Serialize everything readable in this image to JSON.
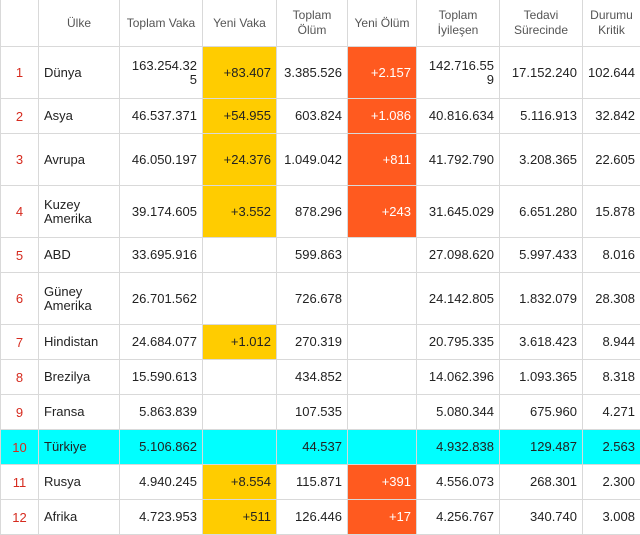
{
  "headers": {
    "country": "Ülke",
    "total_cases": "Toplam Vaka",
    "new_cases": "Yeni Vaka",
    "total_deaths": "Toplam Ölüm",
    "new_deaths": "Yeni Ölüm",
    "total_recovered": "Toplam İyileşen",
    "active": "Tedavi Sürecinde",
    "critical": "Durumu Kritik"
  },
  "colors": {
    "new_cases_bg": "#ffcc00",
    "new_deaths_bg": "#ff5a1f",
    "highlight_row_bg": "#00ffff",
    "rank_color": "#d62b1f"
  },
  "highlighted_row": "10",
  "rows": [
    {
      "rank": "1",
      "country": "Dünya",
      "total_cases": "163.254.325",
      "new_cases": "+83.407",
      "total_deaths": "3.385.526",
      "new_deaths": "+2.157",
      "total_recovered": "142.716.559",
      "active": "17.152.240",
      "critical": "102.644"
    },
    {
      "rank": "2",
      "country": "Asya",
      "total_cases": "46.537.371",
      "new_cases": "+54.955",
      "total_deaths": "603.824",
      "new_deaths": "+1.086",
      "total_recovered": "40.816.634",
      "active": "5.116.913",
      "critical": "32.842"
    },
    {
      "rank": "3",
      "country": "Avrupa",
      "total_cases": "46.050.197",
      "new_cases": "+24.376",
      "total_deaths": "1.049.042",
      "new_deaths": "+811",
      "total_recovered": "41.792.790",
      "active": "3.208.365",
      "critical": "22.605"
    },
    {
      "rank": "4",
      "country": "Kuzey Amerika",
      "total_cases": "39.174.605",
      "new_cases": "+3.552",
      "total_deaths": "878.296",
      "new_deaths": "+243",
      "total_recovered": "31.645.029",
      "active": "6.651.280",
      "critical": "15.878"
    },
    {
      "rank": "5",
      "country": "ABD",
      "total_cases": "33.695.916",
      "new_cases": "",
      "total_deaths": "599.863",
      "new_deaths": "",
      "total_recovered": "27.098.620",
      "active": "5.997.433",
      "critical": "8.016"
    },
    {
      "rank": "6",
      "country": "Güney Amerika",
      "total_cases": "26.701.562",
      "new_cases": "",
      "total_deaths": "726.678",
      "new_deaths": "",
      "total_recovered": "24.142.805",
      "active": "1.832.079",
      "critical": "28.308"
    },
    {
      "rank": "7",
      "country": "Hindistan",
      "total_cases": "24.684.077",
      "new_cases": "+1.012",
      "total_deaths": "270.319",
      "new_deaths": "",
      "total_recovered": "20.795.335",
      "active": "3.618.423",
      "critical": "8.944"
    },
    {
      "rank": "8",
      "country": "Brezilya",
      "total_cases": "15.590.613",
      "new_cases": "",
      "total_deaths": "434.852",
      "new_deaths": "",
      "total_recovered": "14.062.396",
      "active": "1.093.365",
      "critical": "8.318"
    },
    {
      "rank": "9",
      "country": "Fransa",
      "total_cases": "5.863.839",
      "new_cases": "",
      "total_deaths": "107.535",
      "new_deaths": "",
      "total_recovered": "5.080.344",
      "active": "675.960",
      "critical": "4.271"
    },
    {
      "rank": "10",
      "country": "Türkiye",
      "total_cases": "5.106.862",
      "new_cases": "",
      "total_deaths": "44.537",
      "new_deaths": "",
      "total_recovered": "4.932.838",
      "active": "129.487",
      "critical": "2.563"
    },
    {
      "rank": "11",
      "country": "Rusya",
      "total_cases": "4.940.245",
      "new_cases": "+8.554",
      "total_deaths": "115.871",
      "new_deaths": "+391",
      "total_recovered": "4.556.073",
      "active": "268.301",
      "critical": "2.300"
    },
    {
      "rank": "12",
      "country": "Afrika",
      "total_cases": "4.723.953",
      "new_cases": "+511",
      "total_deaths": "126.446",
      "new_deaths": "+17",
      "total_recovered": "4.256.767",
      "active": "340.740",
      "critical": "3.008"
    }
  ]
}
